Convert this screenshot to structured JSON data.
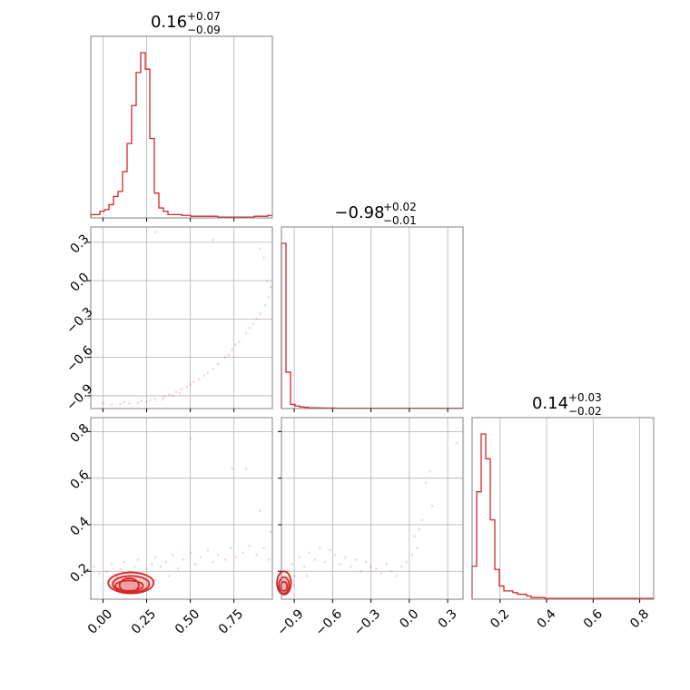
{
  "colors": {
    "series": "#d62728",
    "frame": "#808080",
    "grid": "#b0b0b0",
    "background": "#ffffff"
  },
  "chart_data": {
    "type": "corner",
    "parameters": [
      {
        "summary": {
          "median": "0.16",
          "plus": "+0.07",
          "minus": "−0.09"
        },
        "range": [
          -0.07,
          0.97
        ],
        "ticks": [
          0.0,
          0.25,
          0.5,
          0.75
        ],
        "tick_labels": [
          "0.00",
          "0.25",
          "0.50",
          "0.75"
        ],
        "histogram": {
          "edges": [
            -0.07,
            -0.044,
            -0.018,
            0.008,
            0.034,
            0.06,
            0.086,
            0.112,
            0.138,
            0.164,
            0.19,
            0.216,
            0.242,
            0.268,
            0.294,
            0.32,
            0.346,
            0.372,
            0.398,
            0.424,
            0.45,
            0.476,
            0.502,
            0.528,
            0.554,
            0.58,
            0.606,
            0.632,
            0.658,
            0.684,
            0.71,
            0.736,
            0.762,
            0.788,
            0.814,
            0.84,
            0.866,
            0.892,
            0.918,
            0.944,
            0.97
          ],
          "counts": [
            2,
            2,
            4,
            5,
            8,
            13,
            16,
            28,
            45,
            68,
            88,
            100,
            90,
            48,
            15,
            6,
            4,
            2,
            2,
            2,
            1.5,
            1.5,
            1,
            1,
            1,
            1,
            1,
            1,
            0.5,
            0.5,
            0.5,
            0.5,
            0.5,
            0.5,
            0.5,
            0.5,
            1,
            1,
            1,
            1.5
          ]
        }
      },
      {
        "summary": {
          "median": "−0.98",
          "plus": "+0.02",
          "minus": "−0.01"
        },
        "range": [
          -1.0,
          0.42
        ],
        "ticks": [
          -0.9,
          -0.6,
          -0.3,
          0.0,
          0.3
        ],
        "tick_labels": [
          "−0.9",
          "−0.6",
          "−0.3",
          "0.0",
          "0.3"
        ],
        "histogram": {
          "edges": [
            -1.0,
            -0.9645,
            -0.929,
            -0.8935,
            -0.858,
            -0.8225,
            -0.787,
            -0.7515,
            -0.716,
            -0.6805,
            -0.645,
            -0.6095,
            -0.574,
            -0.5385,
            -0.503,
            -0.4675,
            -0.432,
            -0.3965,
            -0.361,
            -0.3255,
            -0.29,
            -0.2545,
            -0.219,
            -0.1835,
            -0.148,
            -0.1125,
            -0.077,
            -0.0415,
            -0.006,
            0.0295,
            0.065,
            0.1005,
            0.136,
            0.1715,
            0.207,
            0.2425,
            0.278,
            0.3135,
            0.349,
            0.3845,
            0.42
          ],
          "counts": [
            100,
            22,
            2.5,
            1.5,
            1,
            0.8,
            0.5,
            0.5,
            0.4,
            0.3,
            0.3,
            0.3,
            0.2,
            0.2,
            0.2,
            0.2,
            0.2,
            0.2,
            0.2,
            0.2,
            0.2,
            0.2,
            0.2,
            0.2,
            0.2,
            0.2,
            0.2,
            0.2,
            0.2,
            0.2,
            0.2,
            0.2,
            0.2,
            0.2,
            0.2,
            0.2,
            0.2,
            0.2,
            0.2,
            0.2
          ]
        }
      },
      {
        "summary": {
          "median": "0.14",
          "plus": "+0.03",
          "minus": "−0.02"
        },
        "range": [
          0.08,
          0.86
        ],
        "ticks": [
          0.2,
          0.4,
          0.6,
          0.8
        ],
        "tick_labels": [
          "0.2",
          "0.4",
          "0.6",
          "0.8"
        ],
        "histogram": {
          "edges": [
            0.08,
            0.0995,
            0.119,
            0.1385,
            0.158,
            0.1775,
            0.197,
            0.2165,
            0.236,
            0.2555,
            0.275,
            0.2945,
            0.314,
            0.3335,
            0.353,
            0.3725,
            0.392,
            0.4115,
            0.431,
            0.4505,
            0.47,
            0.4895,
            0.509,
            0.5285,
            0.548,
            0.5675,
            0.587,
            0.6065,
            0.626,
            0.6455,
            0.665,
            0.6845,
            0.704,
            0.7235,
            0.743,
            0.7625,
            0.782,
            0.8015,
            0.821,
            0.8405,
            0.86
          ],
          "counts": [
            20,
            65,
            100,
            85,
            48,
            18,
            8,
            5,
            5,
            4,
            3,
            3,
            2,
            1,
            1,
            1,
            0.5,
            0.5,
            0.5,
            0.5,
            0.5,
            0.5,
            0.5,
            0.5,
            0.5,
            0.5,
            0.5,
            0.5,
            0.5,
            0.5,
            0.5,
            0.5,
            0.5,
            0.5,
            0.5,
            0.5,
            0.5,
            0.5,
            0.5,
            0.5
          ]
        }
      }
    ],
    "joint_2d": [
      {
        "x_param": 0,
        "y_param": 1,
        "points": [
          [
            0.0,
            -0.96
          ],
          [
            0.05,
            -0.97
          ],
          [
            0.1,
            -0.965
          ],
          [
            0.15,
            -0.96
          ],
          [
            0.2,
            -0.955
          ],
          [
            0.25,
            -0.95
          ],
          [
            0.3,
            -0.93
          ],
          [
            0.35,
            -0.91
          ],
          [
            0.38,
            -0.89
          ],
          [
            0.42,
            -0.87
          ],
          [
            0.45,
            -0.85
          ],
          [
            0.48,
            -0.83
          ],
          [
            0.5,
            -0.81
          ],
          [
            0.52,
            -0.79
          ],
          [
            0.55,
            -0.77
          ],
          [
            0.58,
            -0.74
          ],
          [
            0.6,
            -0.72
          ],
          [
            0.63,
            -0.69
          ],
          [
            0.66,
            -0.65
          ],
          [
            0.7,
            -0.6
          ],
          [
            0.74,
            -0.54
          ],
          [
            0.78,
            -0.48
          ],
          [
            0.82,
            -0.41
          ],
          [
            0.86,
            -0.34
          ],
          [
            0.9,
            -0.26
          ],
          [
            0.93,
            -0.19
          ],
          [
            0.95,
            -0.13
          ],
          [
            0.72,
            -0.58
          ],
          [
            0.76,
            -0.5
          ],
          [
            0.84,
            -0.37
          ],
          [
            0.88,
            -0.3
          ],
          [
            0.3,
            0.38
          ],
          [
            0.63,
            0.32
          ],
          [
            0.9,
            0.25
          ],
          [
            0.92,
            0.18
          ],
          [
            0.94,
            0.0
          ],
          [
            0.96,
            -0.05
          ],
          [
            0.4,
            -0.9
          ],
          [
            0.44,
            -0.88
          ],
          [
            0.34,
            -0.93
          ],
          [
            0.12,
            -0.95
          ],
          [
            0.22,
            -0.94
          ],
          [
            0.27,
            -0.935
          ]
        ]
      },
      {
        "x_param": 0,
        "y_param": 2,
        "points": [
          [
            -0.05,
            0.22
          ],
          [
            -0.02,
            0.19
          ],
          [
            0.02,
            0.2
          ],
          [
            0.05,
            0.23
          ],
          [
            0.08,
            0.18
          ],
          [
            0.1,
            0.21
          ],
          [
            0.12,
            0.24
          ],
          [
            0.15,
            0.2
          ],
          [
            0.18,
            0.22
          ],
          [
            0.2,
            0.25
          ],
          [
            0.22,
            0.19
          ],
          [
            0.25,
            0.21
          ],
          [
            0.28,
            0.23
          ],
          [
            0.3,
            0.26
          ],
          [
            0.33,
            0.22
          ],
          [
            0.36,
            0.24
          ],
          [
            0.4,
            0.27
          ],
          [
            0.43,
            0.21
          ],
          [
            0.46,
            0.25
          ],
          [
            0.5,
            0.28
          ],
          [
            0.53,
            0.23
          ],
          [
            0.56,
            0.26
          ],
          [
            0.6,
            0.29
          ],
          [
            0.63,
            0.24
          ],
          [
            0.66,
            0.27
          ],
          [
            0.7,
            0.25
          ],
          [
            0.73,
            0.3
          ],
          [
            0.76,
            0.26
          ],
          [
            0.8,
            0.28
          ],
          [
            0.84,
            0.31
          ],
          [
            0.88,
            0.27
          ],
          [
            0.92,
            0.3
          ],
          [
            0.95,
            0.25
          ],
          [
            0.96,
            0.37
          ],
          [
            0.9,
            0.46
          ],
          [
            0.82,
            0.64
          ],
          [
            0.74,
            0.64
          ],
          [
            0.5,
            0.77
          ],
          [
            0.06,
            0.15
          ],
          [
            0.3,
            0.16
          ],
          [
            0.38,
            0.18
          ]
        ],
        "contours": [
          {
            "cx": 0.15,
            "cy": 0.138,
            "rx": 0.08,
            "ry": 0.022
          },
          {
            "cx": 0.15,
            "cy": 0.14,
            "rx": 0.055,
            "ry": 0.03
          },
          {
            "cx": 0.16,
            "cy": 0.145,
            "rx": 0.105,
            "ry": 0.035
          },
          {
            "cx": 0.16,
            "cy": 0.15,
            "rx": 0.13,
            "ry": 0.045
          }
        ]
      },
      {
        "x_param": 1,
        "y_param": 2,
        "points": [
          [
            -0.95,
            0.2
          ],
          [
            -0.92,
            0.23
          ],
          [
            -0.9,
            0.18
          ],
          [
            -0.86,
            0.26
          ],
          [
            -0.82,
            0.22
          ],
          [
            -0.78,
            0.28
          ],
          [
            -0.74,
            0.25
          ],
          [
            -0.7,
            0.3
          ],
          [
            -0.66,
            0.24
          ],
          [
            -0.62,
            0.29
          ],
          [
            -0.58,
            0.27
          ],
          [
            -0.54,
            0.23
          ],
          [
            -0.5,
            0.26
          ],
          [
            -0.46,
            0.22
          ],
          [
            -0.42,
            0.25
          ],
          [
            -0.38,
            0.2
          ],
          [
            -0.34,
            0.24
          ],
          [
            -0.3,
            0.22
          ],
          [
            -0.26,
            0.21
          ],
          [
            -0.22,
            0.19
          ],
          [
            -0.18,
            0.23
          ],
          [
            -0.14,
            0.2
          ],
          [
            -0.1,
            0.18
          ],
          [
            -0.06,
            0.22
          ],
          [
            -0.02,
            0.24
          ],
          [
            0.02,
            0.27
          ],
          [
            0.04,
            0.35
          ],
          [
            0.06,
            0.3
          ],
          [
            0.08,
            0.38
          ],
          [
            0.1,
            0.42
          ],
          [
            0.13,
            0.58
          ],
          [
            0.16,
            0.63
          ],
          [
            0.18,
            0.48
          ],
          [
            0.37,
            0.75
          ],
          [
            -0.9,
            0.14
          ],
          [
            -0.96,
            0.12
          ],
          [
            -0.94,
            0.16
          ],
          [
            -0.8,
            0.18
          ]
        ],
        "contours": [
          {
            "cx": -0.98,
            "cy": 0.135,
            "rx": 0.025,
            "ry": 0.02
          },
          {
            "cx": -0.98,
            "cy": 0.14,
            "rx": 0.04,
            "ry": 0.035
          },
          {
            "cx": -0.98,
            "cy": 0.15,
            "rx": 0.055,
            "ry": 0.05
          }
        ]
      }
    ]
  }
}
